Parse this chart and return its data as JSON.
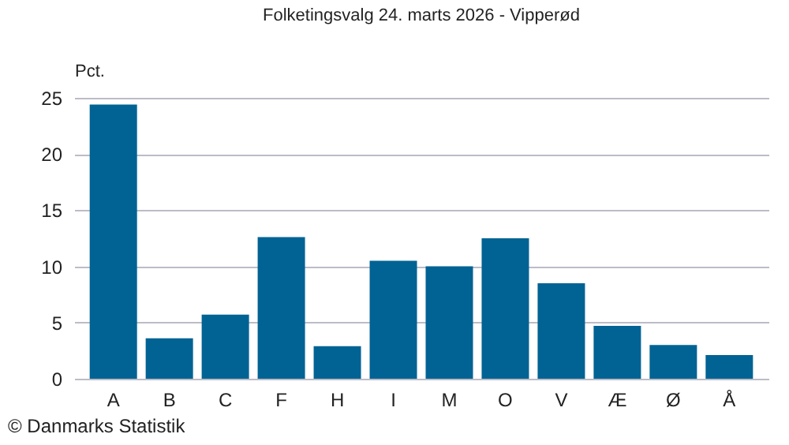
{
  "chart_data": {
    "type": "bar",
    "title": "Folketingsvalg 24. marts 2026 - Vipperød",
    "ylabel": "Pct.",
    "categories": [
      "A",
      "B",
      "C",
      "F",
      "H",
      "I",
      "M",
      "O",
      "V",
      "Æ",
      "Ø",
      "Å"
    ],
    "values": [
      24.4,
      3.6,
      5.7,
      12.6,
      2.9,
      10.5,
      10.0,
      12.5,
      8.5,
      4.7,
      3.0,
      2.1
    ],
    "color": "#006394",
    "ylim": [
      0,
      25
    ],
    "yticks": [
      0,
      5,
      10,
      15,
      20,
      25
    ],
    "grid": "y",
    "annotations": [
      "© Danmarks Statistik"
    ]
  }
}
